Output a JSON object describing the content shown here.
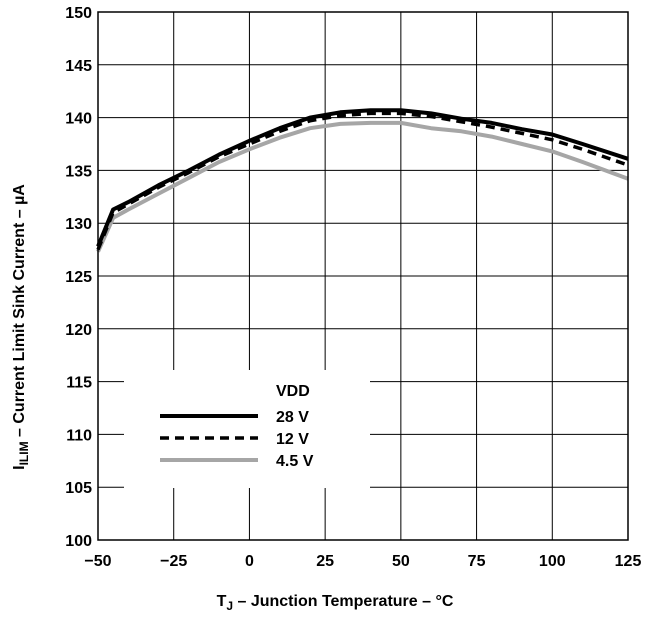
{
  "chart_data": {
    "type": "line",
    "xlabel": {
      "main": "T",
      "sub": "J",
      "rest": " – Junction Temperature – °C"
    },
    "ylabel": {
      "main": "I",
      "sub": "ILIM",
      "rest": " – Current Limit Sink Current – µA"
    },
    "xlim": [
      -50,
      125
    ],
    "ylim": [
      100,
      150
    ],
    "x_ticks": [
      -50,
      -25,
      0,
      25,
      50,
      75,
      100,
      125
    ],
    "y_ticks": [
      100,
      105,
      110,
      115,
      120,
      125,
      130,
      135,
      140,
      145,
      150
    ],
    "x_tick_labels": [
      "−50",
      "−25",
      "0",
      "25",
      "50",
      "75",
      "100",
      "125"
    ],
    "y_tick_labels": [
      "100",
      "105",
      "110",
      "115",
      "120",
      "125",
      "130",
      "135",
      "140",
      "145",
      "150"
    ],
    "grid": true,
    "legend": {
      "title": "VDD",
      "placement": "bottom-left"
    },
    "series": [
      {
        "name": "28 V",
        "color": "#000000",
        "style": "solid",
        "x": [
          -50,
          -45,
          -40,
          -30,
          -20,
          -10,
          0,
          10,
          20,
          30,
          40,
          50,
          60,
          70,
          80,
          90,
          100,
          110,
          125
        ],
        "y": [
          127.8,
          131.3,
          132.0,
          133.6,
          135.0,
          136.5,
          137.8,
          139.0,
          140.0,
          140.5,
          140.7,
          140.7,
          140.4,
          139.9,
          139.5,
          138.9,
          138.4,
          137.5,
          136.1
        ]
      },
      {
        "name": "12 V",
        "color": "#000000",
        "style": "dashed",
        "x": [
          -50,
          -45,
          -40,
          -30,
          -20,
          -10,
          0,
          10,
          20,
          30,
          40,
          50,
          60,
          70,
          80,
          90,
          100,
          110,
          125
        ],
        "y": [
          127.5,
          131.0,
          131.8,
          133.4,
          134.8,
          136.3,
          137.5,
          138.7,
          139.7,
          140.2,
          140.4,
          140.4,
          140.1,
          139.6,
          139.1,
          138.5,
          137.9,
          137.0,
          135.5
        ]
      },
      {
        "name": "4.5 V",
        "color": "#a6a6a6",
        "style": "solid",
        "x": [
          -50,
          -45,
          -40,
          -30,
          -20,
          -10,
          0,
          10,
          20,
          30,
          40,
          50,
          60,
          70,
          80,
          90,
          100,
          110,
          125
        ],
        "y": [
          127.3,
          130.5,
          131.3,
          132.8,
          134.3,
          135.8,
          137.0,
          138.1,
          139.0,
          139.4,
          139.5,
          139.5,
          139.0,
          138.7,
          138.2,
          137.5,
          136.8,
          135.8,
          134.2
        ]
      }
    ]
  }
}
